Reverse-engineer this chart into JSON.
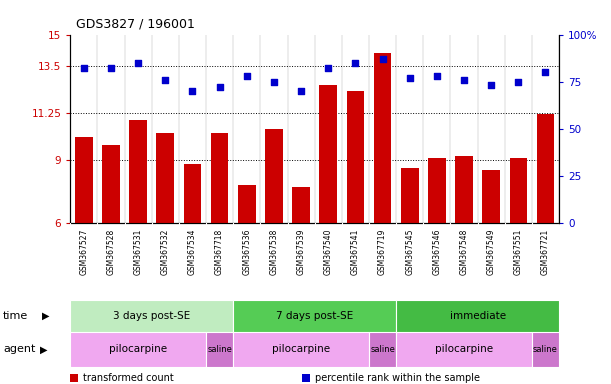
{
  "title": "GDS3827 / 196001",
  "samples": [
    "GSM367527",
    "GSM367528",
    "GSM367531",
    "GSM367532",
    "GSM367534",
    "GSM367718",
    "GSM367536",
    "GSM367538",
    "GSM367539",
    "GSM367540",
    "GSM367541",
    "GSM367719",
    "GSM367545",
    "GSM367546",
    "GSM367548",
    "GSM367549",
    "GSM367551",
    "GSM367721"
  ],
  "bar_values": [
    10.1,
    9.7,
    10.9,
    10.3,
    8.8,
    10.3,
    7.8,
    10.5,
    7.7,
    12.6,
    12.3,
    14.1,
    8.6,
    9.1,
    9.2,
    8.5,
    9.1,
    11.2
  ],
  "dot_values": [
    82,
    82,
    85,
    76,
    70,
    72,
    78,
    75,
    70,
    82,
    85,
    87,
    77,
    78,
    76,
    73,
    75,
    80
  ],
  "bar_color": "#cc0000",
  "dot_color": "#0000cc",
  "ylim_left": [
    6,
    15
  ],
  "ylim_right": [
    0,
    100
  ],
  "yticks_left": [
    6,
    9,
    11.25,
    13.5,
    15
  ],
  "ytick_left_labels": [
    "6",
    "9",
    "11.25",
    "13.5",
    "15"
  ],
  "yticks_right": [
    0,
    25,
    50,
    75,
    100
  ],
  "ytick_right_labels": [
    "0",
    "25",
    "50",
    "75",
    "100%"
  ],
  "hlines": [
    9,
    11.25,
    13.5
  ],
  "time_groups": [
    {
      "label": "3 days post-SE",
      "start": 0,
      "end": 6,
      "color": "#c0ecc0"
    },
    {
      "label": "7 days post-SE",
      "start": 6,
      "end": 12,
      "color": "#55cc55"
    },
    {
      "label": "immediate",
      "start": 12,
      "end": 18,
      "color": "#44bb44"
    }
  ],
  "agent_groups": [
    {
      "label": "pilocarpine",
      "start": 0,
      "end": 5,
      "color": "#f0a8f0"
    },
    {
      "label": "saline",
      "start": 5,
      "end": 6,
      "color": "#cc77cc"
    },
    {
      "label": "pilocarpine",
      "start": 6,
      "end": 11,
      "color": "#f0a8f0"
    },
    {
      "label": "saline",
      "start": 11,
      "end": 12,
      "color": "#cc77cc"
    },
    {
      "label": "pilocarpine",
      "start": 12,
      "end": 17,
      "color": "#f0a8f0"
    },
    {
      "label": "saline",
      "start": 17,
      "end": 18,
      "color": "#cc77cc"
    }
  ],
  "legend_items": [
    {
      "label": "transformed count",
      "color": "#cc0000"
    },
    {
      "label": "percentile rank within the sample",
      "color": "#0000cc"
    }
  ],
  "time_label": "time",
  "agent_label": "agent",
  "bar_width": 0.65,
  "sample_box_color": "#d8d8d8",
  "n_samples": 18
}
